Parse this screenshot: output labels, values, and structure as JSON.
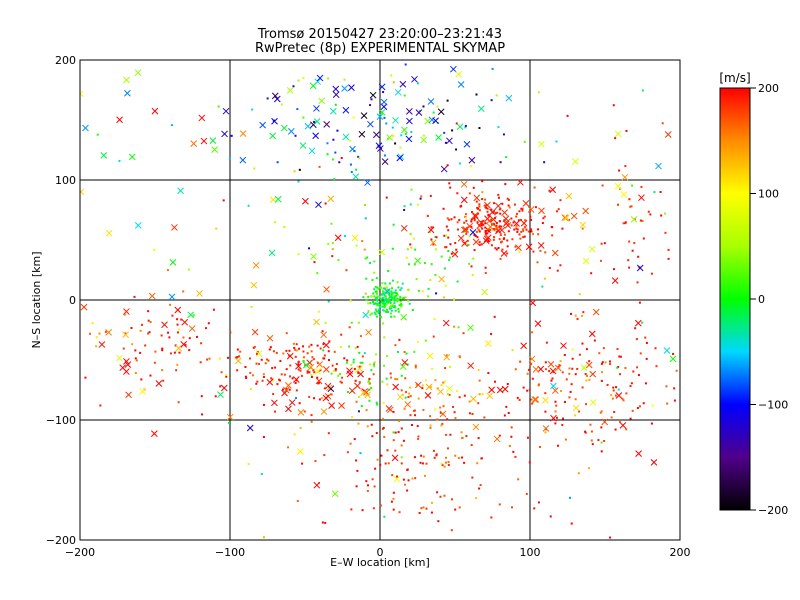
{
  "chart_data": {
    "type": "scatter",
    "title": "Tromsø 20150427 23:20:00–23:21:43",
    "subtitle": "RwPretec (8p) EXPERIMENTAL SKYMAP",
    "xlabel": "E–W location [km]",
    "ylabel": "N–S location [km]",
    "xlim": [
      -200,
      200
    ],
    "ylim": [
      -200,
      200
    ],
    "x_ticks": [
      "−200",
      "−100",
      "0",
      "100",
      "200"
    ],
    "y_ticks": [
      "−200",
      "−100",
      "0",
      "100",
      "200"
    ],
    "grid": true,
    "colorbar": {
      "label": "[m/s]",
      "range": [
        -200,
        200
      ],
      "ticks": [
        "200",
        "100",
        "0",
        "−100",
        "−200"
      ]
    },
    "clusters": [
      {
        "marker": "dot",
        "cx": 5,
        "cy": 0,
        "sx": 6,
        "sy": 7,
        "n": 170,
        "v": 0,
        "vs": 20
      },
      {
        "marker": "dot",
        "cx": 75,
        "cy": 62,
        "sx": 22,
        "sy": 15,
        "n": 210,
        "v": 190,
        "vs": 15
      },
      {
        "marker": "dot",
        "cx": -60,
        "cy": -55,
        "sx": 25,
        "sy": 14,
        "n": 140,
        "v": 190,
        "vs": 15
      },
      {
        "marker": "dot",
        "cx": 25,
        "cy": -135,
        "sx": 35,
        "sy": 35,
        "n": 160,
        "v": 185,
        "vs": 25
      },
      {
        "marker": "dot",
        "cx": 140,
        "cy": -70,
        "sx": 30,
        "sy": 25,
        "n": 150,
        "v": 185,
        "vs": 25
      },
      {
        "marker": "dot",
        "cx": -150,
        "cy": -40,
        "sx": 20,
        "sy": 20,
        "n": 60,
        "v": 185,
        "vs": 25
      },
      {
        "marker": "dot",
        "cx": 15,
        "cy": 30,
        "sx": 25,
        "sy": 25,
        "n": 70,
        "v": 30,
        "vs": 50
      },
      {
        "marker": "dot",
        "cx": 0,
        "cy": 150,
        "sx": 60,
        "sy": 35,
        "n": 90,
        "v": -60,
        "vs": 80
      },
      {
        "marker": "dot",
        "cx": -10,
        "cy": -55,
        "sx": 15,
        "sy": 20,
        "n": 50,
        "v": 20,
        "vs": 30
      },
      {
        "marker": "dot",
        "cx": 30,
        "cy": -75,
        "sx": 20,
        "sy": 15,
        "n": 50,
        "v": 150,
        "vs": 30
      },
      {
        "marker": "dot",
        "cx": 160,
        "cy": 50,
        "sx": 25,
        "sy": 40,
        "n": 50,
        "v": 190,
        "vs": 15
      },
      {
        "marker": "dot",
        "cx": 0,
        "cy": 0,
        "sx": 110,
        "sy": 110,
        "n": 130,
        "v": 120,
        "vs": 110
      },
      {
        "marker": "x",
        "cx": -10,
        "cy": 150,
        "sx": 50,
        "sy": 30,
        "n": 75,
        "v": -80,
        "vs": 60
      },
      {
        "marker": "x",
        "cx": 75,
        "cy": 60,
        "sx": 20,
        "sy": 15,
        "n": 45,
        "v": 190,
        "vs": 15
      },
      {
        "marker": "x",
        "cx": -40,
        "cy": -75,
        "sx": 30,
        "sy": 20,
        "n": 35,
        "v": 180,
        "vs": 40
      },
      {
        "marker": "x",
        "cx": 20,
        "cy": -80,
        "sx": 30,
        "sy": 20,
        "n": 15,
        "v": 150,
        "vs": 50
      },
      {
        "marker": "x",
        "cx": 130,
        "cy": -60,
        "sx": 30,
        "sy": 30,
        "n": 30,
        "v": 180,
        "vs": 40
      },
      {
        "marker": "x",
        "cx": -150,
        "cy": -40,
        "sx": 25,
        "sy": 25,
        "n": 25,
        "v": 180,
        "vs": 40
      },
      {
        "marker": "x",
        "cx": 0,
        "cy": 0,
        "sx": 110,
        "sy": 110,
        "n": 70,
        "v": 100,
        "vs": 120
      },
      {
        "marker": "x",
        "cx": -140,
        "cy": 120,
        "sx": 40,
        "sy": 50,
        "n": 20,
        "v": 80,
        "vs": 110
      },
      {
        "marker": "x",
        "cx": 150,
        "cy": 90,
        "sx": 30,
        "sy": 20,
        "n": 15,
        "v": 140,
        "vs": 80
      }
    ]
  }
}
